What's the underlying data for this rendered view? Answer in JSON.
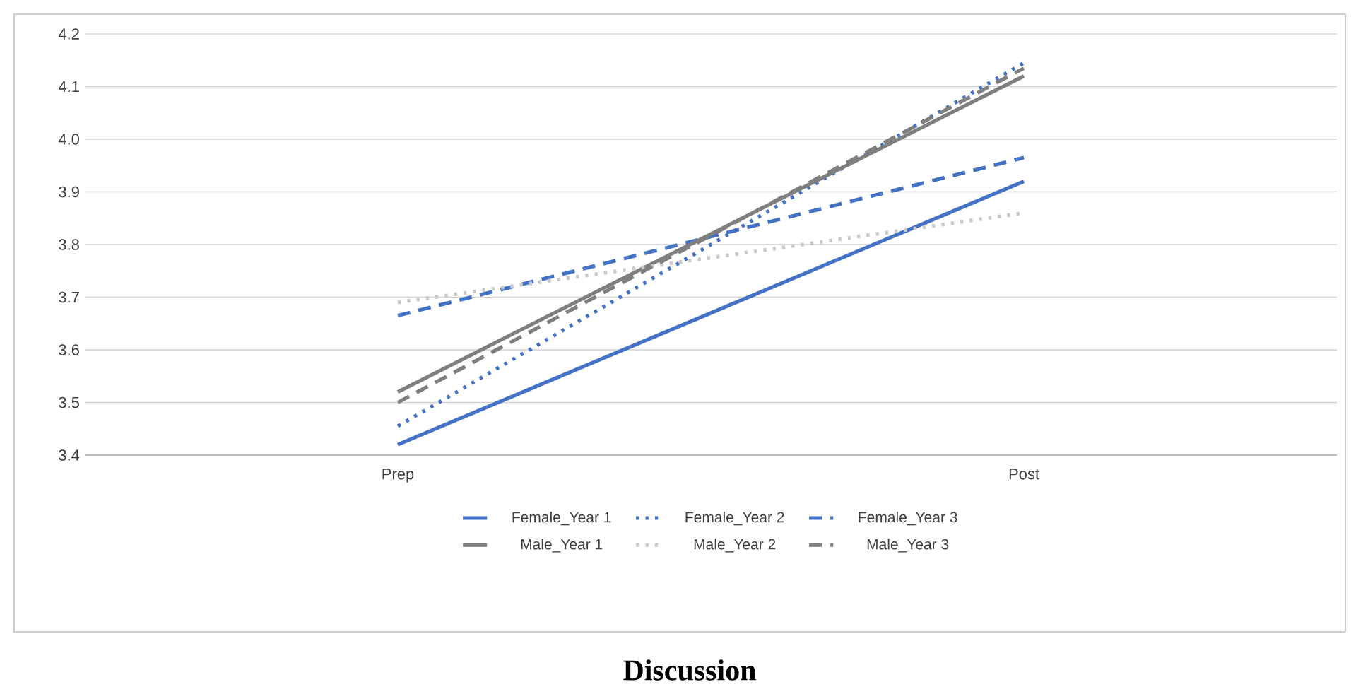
{
  "chart_data": {
    "type": "line",
    "title": "Discussion",
    "categories": [
      "Prep",
      "Post"
    ],
    "series": [
      {
        "name": "Female_Year 1",
        "color": "#4472c4",
        "line_style": "solid",
        "values": [
          3.42,
          3.92
        ]
      },
      {
        "name": "Female_Year 2",
        "color": "#4472c4",
        "line_style": "dotted",
        "values": [
          3.455,
          4.145
        ]
      },
      {
        "name": "Female_Year 3",
        "color": "#4472c4",
        "line_style": "dashed",
        "values": [
          3.665,
          3.965
        ]
      },
      {
        "name": "Male_Year 1",
        "color": "#7f7f7f",
        "line_style": "solid",
        "values": [
          3.52,
          4.12
        ]
      },
      {
        "name": "Male_Year 2",
        "color": "#c9c9c9",
        "line_style": "dotted",
        "values": [
          3.69,
          3.86
        ]
      },
      {
        "name": "Male_Year 3",
        "color": "#7f7f7f",
        "line_style": "dashed",
        "values": [
          3.5,
          4.135
        ]
      }
    ],
    "ylim": [
      3.4,
      4.2
    ],
    "yticks": [
      3.4,
      3.5,
      3.6,
      3.7,
      3.8,
      3.9,
      {
        "value": 4,
        "label": "4.0"
      },
      4.1,
      4.2
    ],
    "grid": "y",
    "legend": "bottom",
    "marker": "none"
  }
}
